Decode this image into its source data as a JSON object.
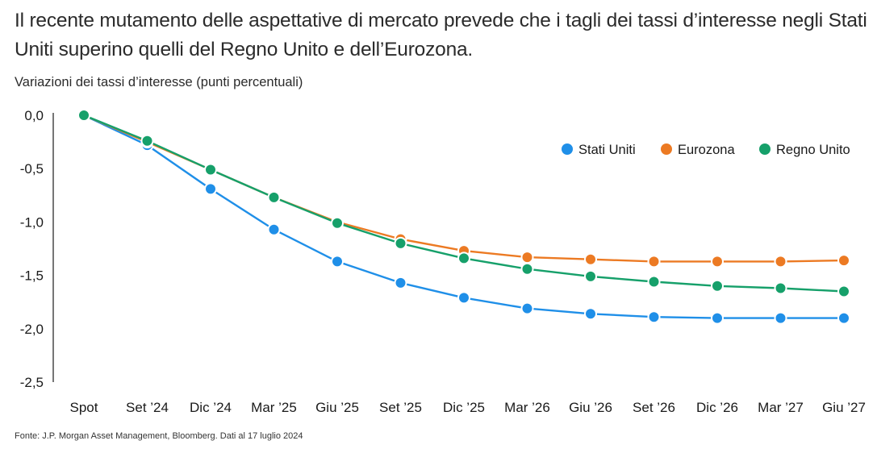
{
  "title": "Il recente mutamento delle aspettative di mercato prevede che i tagli dei tassi d’interesse negli Stati Uniti superino quelli del Regno Unito e dell’Eurozona.",
  "subtitle": "Variazioni dei tassi d’interesse (punti percentuali)",
  "source": "Fonte: J.P. Morgan Asset Management, Bloomberg. Dati al 17 luglio 2024",
  "chart_data": {
    "type": "line",
    "title": "Il recente mutamento delle aspettative di mercato prevede che i tagli dei tassi d’interesse negli Stati Uniti superino quelli del Regno Unito e dell’Eurozona.",
    "ylabel": "Variazioni dei tassi d’interesse (punti percentuali)",
    "xlabel": "",
    "categories": [
      "Spot",
      "Set ’24",
      "Dic ’24",
      "Mar ’25",
      "Giu ’25",
      "Set ’25",
      "Dic ’25",
      "Mar ’26",
      "Giu ’26",
      "Set ’26",
      "Dic ’26",
      "Mar ’27",
      "Giu ’27"
    ],
    "ylim": [
      -2.5,
      0.0
    ],
    "yticks": [
      0.0,
      -0.5,
      -1.0,
      -1.5,
      -2.0,
      -2.5
    ],
    "ytick_labels": [
      "0,0",
      "-0,5",
      "-1,0",
      "-1,5",
      "-2,0",
      "-2,5"
    ],
    "grid": false,
    "legend_position": "top-right",
    "series": [
      {
        "name": "Stati Uniti",
        "color": "#1f8fe8",
        "values": [
          0.0,
          -0.28,
          -0.69,
          -1.07,
          -1.37,
          -1.57,
          -1.71,
          -1.81,
          -1.86,
          -1.89,
          -1.9,
          -1.9,
          -1.9
        ]
      },
      {
        "name": "Eurozona",
        "color": "#ec7a23",
        "values": [
          0.0,
          -0.25,
          -0.51,
          -0.77,
          -1.0,
          -1.16,
          -1.27,
          -1.33,
          -1.35,
          -1.37,
          -1.37,
          -1.37,
          -1.36
        ]
      },
      {
        "name": "Regno Unito",
        "color": "#16a06a",
        "values": [
          0.0,
          -0.24,
          -0.51,
          -0.77,
          -1.01,
          -1.2,
          -1.34,
          -1.44,
          -1.51,
          -1.56,
          -1.6,
          -1.62,
          -1.65
        ]
      }
    ]
  }
}
